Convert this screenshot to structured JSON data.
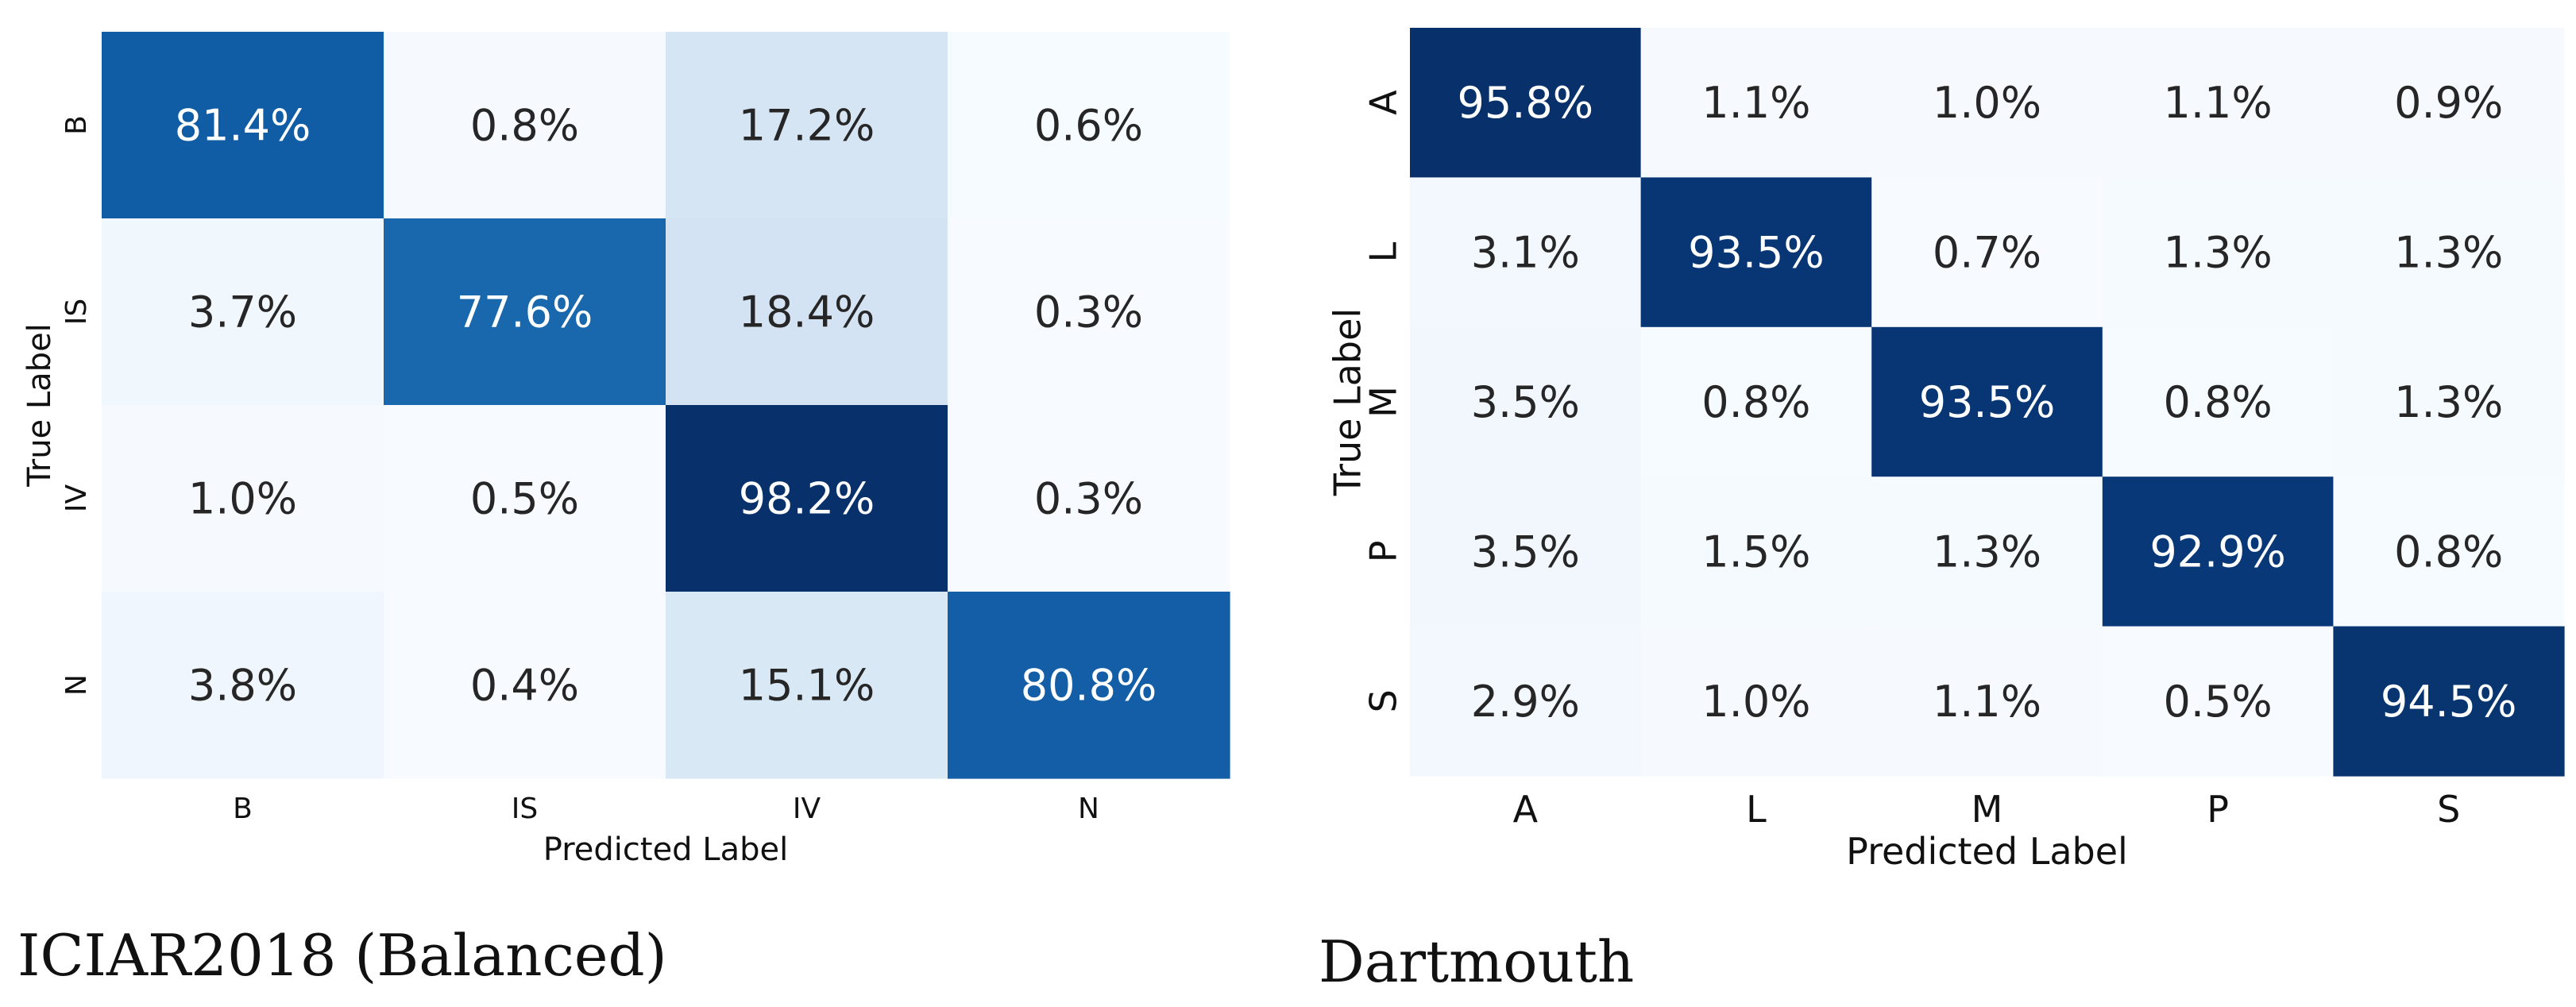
{
  "chart_data": [
    {
      "type": "heatmap",
      "title": "ICIAR2018 (Balanced)",
      "xlabel": "Predicted Label",
      "ylabel": "True Label",
      "x_categories": [
        "B",
        "IS",
        "IV",
        "N"
      ],
      "y_categories": [
        "B",
        "IS",
        "IV",
        "N"
      ],
      "values": [
        [
          81.4,
          0.8,
          17.2,
          0.6
        ],
        [
          3.7,
          77.6,
          18.4,
          0.3
        ],
        [
          1.0,
          0.5,
          98.2,
          0.3
        ],
        [
          3.8,
          0.4,
          15.1,
          80.8
        ]
      ],
      "value_format": "percent_1dp",
      "colormap": "Blues"
    },
    {
      "type": "heatmap",
      "title": "Dartmouth",
      "xlabel": "Predicted Label",
      "ylabel": "True Label",
      "x_categories": [
        "A",
        "L",
        "M",
        "P",
        "S"
      ],
      "y_categories": [
        "A",
        "L",
        "M",
        "P",
        "S"
      ],
      "values": [
        [
          95.8,
          1.1,
          1.0,
          1.1,
          0.9
        ],
        [
          3.1,
          93.5,
          0.7,
          1.3,
          1.3
        ],
        [
          3.5,
          0.8,
          93.5,
          0.8,
          1.3
        ],
        [
          3.5,
          1.5,
          1.3,
          92.9,
          0.8
        ],
        [
          2.9,
          1.0,
          1.1,
          0.5,
          94.5
        ]
      ],
      "value_format": "percent_1dp",
      "colormap": "Blues"
    }
  ],
  "colors": {
    "blues_scale": [
      "#f7fbff",
      "#deebf7",
      "#c6dbef",
      "#9ecae1",
      "#6baed6",
      "#4292c6",
      "#2171b5",
      "#08519c",
      "#08306b"
    ],
    "text_dark": "#262626",
    "text_light": "#ffffff"
  }
}
